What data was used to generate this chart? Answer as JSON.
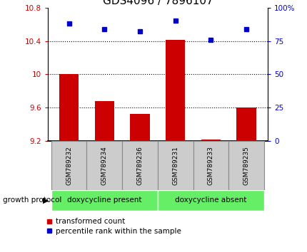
{
  "title": "GDS4096 / 7896107",
  "samples": [
    "GSM789232",
    "GSM789234",
    "GSM789236",
    "GSM789231",
    "GSM789233",
    "GSM789235"
  ],
  "red_values": [
    10.0,
    9.68,
    9.53,
    10.41,
    9.22,
    9.6
  ],
  "blue_values": [
    88,
    84,
    82,
    90,
    76,
    84
  ],
  "ylim_left": [
    9.2,
    10.8
  ],
  "ylim_right": [
    0,
    100
  ],
  "yticks_left": [
    9.2,
    9.6,
    10.0,
    10.4,
    10.8
  ],
  "yticks_right": [
    0,
    25,
    50,
    75,
    100
  ],
  "ytick_labels_left": [
    "9.2",
    "9.6",
    "10",
    "10.4",
    "10.8"
  ],
  "ytick_labels_right": [
    "0",
    "25",
    "50",
    "75",
    "100%"
  ],
  "hlines": [
    9.6,
    10.0,
    10.4
  ],
  "bar_color": "#cc0000",
  "dot_color": "#0000cc",
  "group1_label": "doxycycline present",
  "group2_label": "doxycycline absent",
  "group1_count": 3,
  "group2_count": 3,
  "group_color": "#66ee66",
  "protocol_label": "growth protocol",
  "arrow": "▶",
  "legend_red": "transformed count",
  "legend_blue": "percentile rank within the sample",
  "axis_label_color_left": "#cc0000",
  "axis_label_color_right": "#0000cc",
  "bar_bottom": 9.2,
  "title_fontsize": 11,
  "sample_box_color": "#cccccc",
  "sample_box_edge": "#888888"
}
